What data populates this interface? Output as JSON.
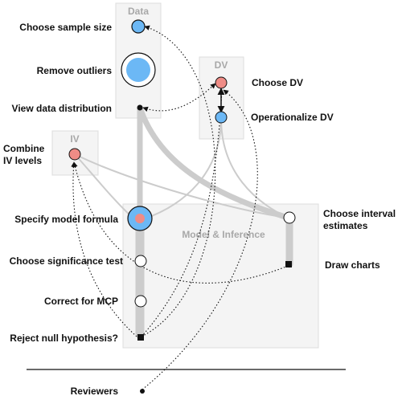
{
  "groups": {
    "data": "Data",
    "dv": "DV",
    "iv": "IV",
    "model": "Model & Inference"
  },
  "nodes": {
    "sample_size": "Choose sample size",
    "remove_outliers": "Remove outliers",
    "view_distribution": "View data distribution",
    "choose_dv": "Choose DV",
    "operationalize_dv": "Operationalize DV",
    "combine_iv_line1": "Combine",
    "combine_iv_line2": "IV levels",
    "model_formula": "Specify model formula",
    "interval_line1": "Choose interval",
    "interval_line2": "estimates",
    "significance_test": "Choose significance test",
    "draw_charts": "Draw charts",
    "correct_mcp": "Correct for MCP",
    "reject_null": "Reject null hypothesis?",
    "reviewers": "Reviewers"
  },
  "colors": {
    "blue": "#6cb8f5",
    "red": "#ef8c86",
    "box": "#f4f4f4",
    "edge": "#cccccc"
  }
}
